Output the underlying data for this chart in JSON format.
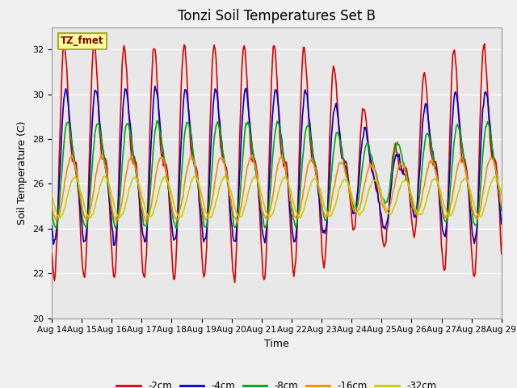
{
  "title": "Tonzi Soil Temperatures Set B",
  "xlabel": "Time",
  "ylabel": "Soil Temperature (C)",
  "ylim": [
    20,
    33
  ],
  "yticks": [
    20,
    22,
    24,
    26,
    28,
    30,
    32
  ],
  "x_tick_labels": [
    "Aug 14",
    "Aug 15",
    "Aug 16",
    "Aug 17",
    "Aug 18",
    "Aug 19",
    "Aug 20",
    "Aug 21",
    "Aug 22",
    "Aug 23",
    "Aug 24",
    "Aug 25",
    "Aug 26",
    "Aug 27",
    "Aug 28",
    "Aug 29"
  ],
  "x_tick_positions": [
    0,
    1,
    2,
    3,
    4,
    5,
    6,
    7,
    8,
    9,
    10,
    11,
    12,
    13,
    14,
    15
  ],
  "line_colors": [
    "#dd0000",
    "#0000cc",
    "#00aa00",
    "#ff8800",
    "#cccc00"
  ],
  "line_labels": [
    "-2cm",
    "-4cm",
    "-8cm",
    "-16cm",
    "-32cm"
  ],
  "legend_label": "TZ_fmet",
  "legend_bg": "#ffff99",
  "legend_border": "#999900",
  "plot_bg": "#e8e8e8",
  "fig_bg": "#f0f0f0",
  "grid_color": "#ffffff",
  "title_fontsize": 12,
  "label_fontsize": 9,
  "tick_fontsize": 8
}
